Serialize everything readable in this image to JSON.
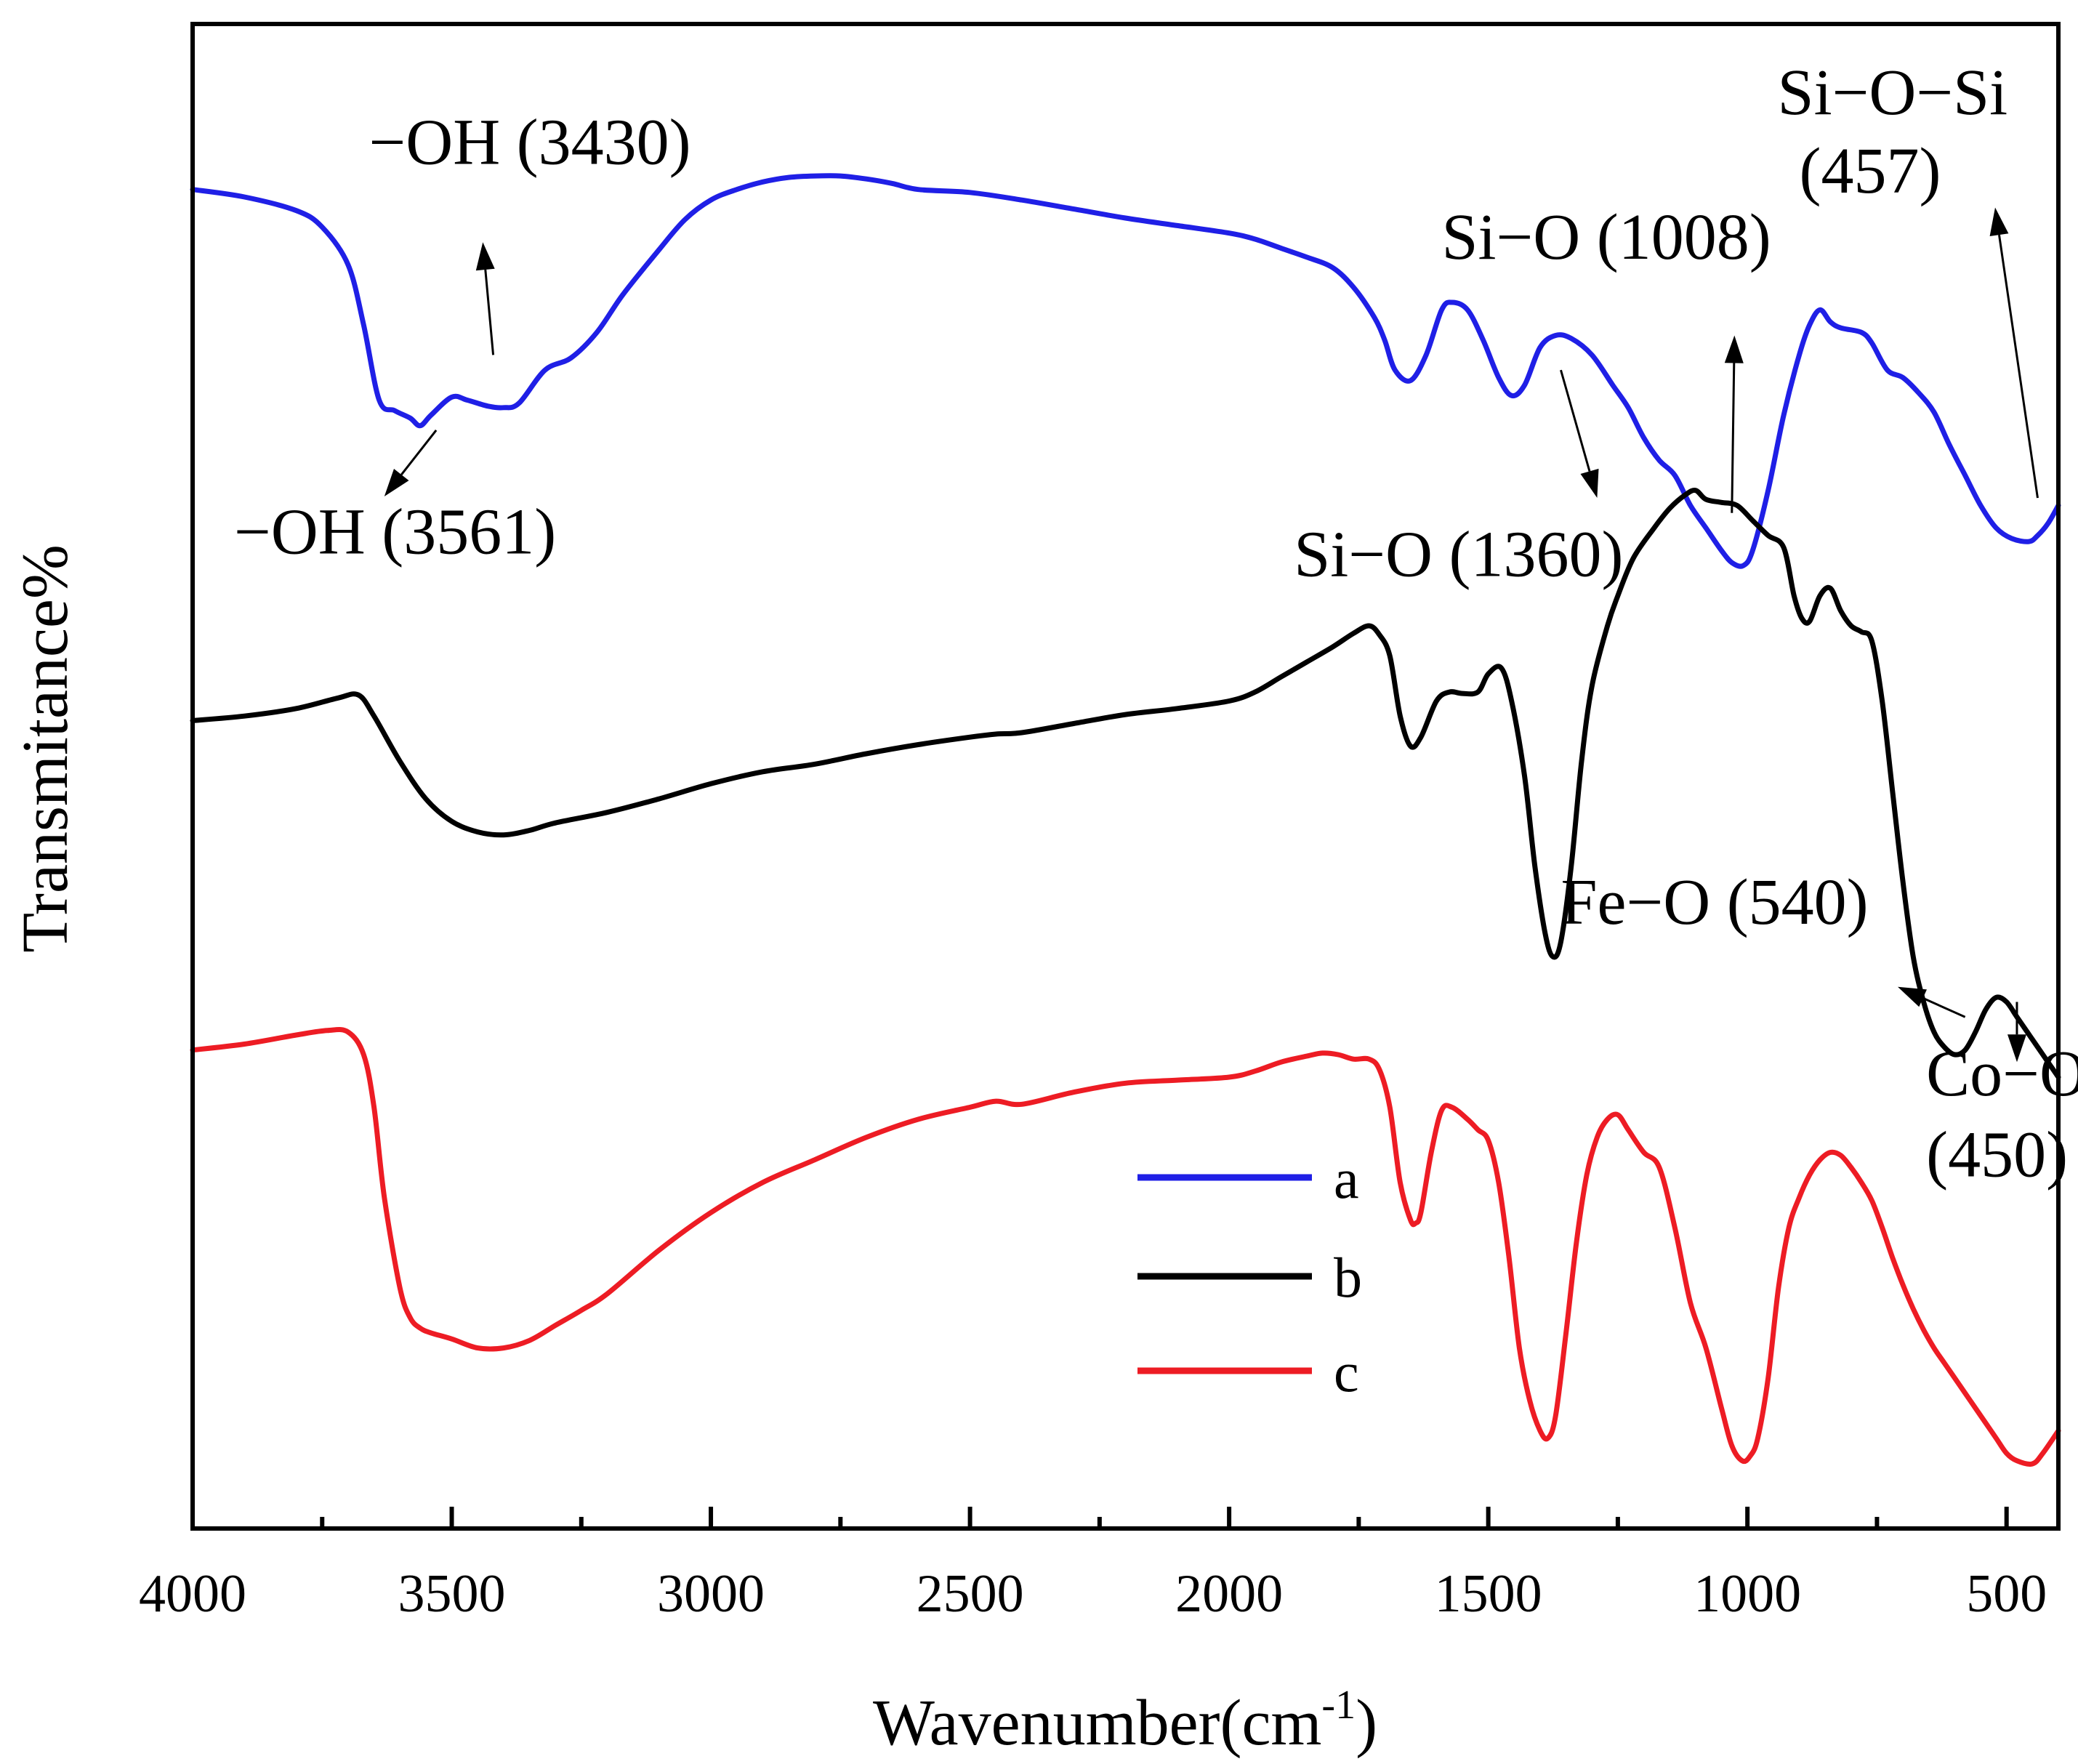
{
  "chart_data": {
    "type": "line",
    "title": "",
    "xlabel": "Wavenumber(cm",
    "xlabel_sup": "-1",
    "xlabel_close": ")",
    "ylabel": "Transmitance%",
    "xlim": [
      4000,
      400
    ],
    "ylim": [
      0,
      100
    ],
    "x_ticks": [
      "4000",
      "3500",
      "3000",
      "2500",
      "2000",
      "1500",
      "1000",
      "500"
    ],
    "x_tick_values": [
      4000,
      3500,
      3000,
      2500,
      2000,
      1500,
      1000,
      500
    ],
    "grid": false,
    "legend_position": "center-bottom",
    "series": [
      {
        "name": "a",
        "color": "#1f1fe6",
        "points": [
          [
            4000,
            89.0
          ],
          [
            3900,
            88.5
          ],
          [
            3800,
            87.6
          ],
          [
            3750,
            86.5
          ],
          [
            3700,
            84.0
          ],
          [
            3670,
            80.0
          ],
          [
            3640,
            75.0
          ],
          [
            3610,
            74.3
          ],
          [
            3580,
            73.8
          ],
          [
            3561,
            73.3
          ],
          [
            3540,
            74.0
          ],
          [
            3500,
            75.2
          ],
          [
            3470,
            75.0
          ],
          [
            3430,
            74.6
          ],
          [
            3400,
            74.5
          ],
          [
            3370,
            74.8
          ],
          [
            3320,
            77.0
          ],
          [
            3270,
            77.8
          ],
          [
            3220,
            79.5
          ],
          [
            3170,
            82.0
          ],
          [
            3100,
            85.0
          ],
          [
            3050,
            87.0
          ],
          [
            3000,
            88.3
          ],
          [
            2950,
            89.0
          ],
          [
            2900,
            89.5
          ],
          [
            2850,
            89.8
          ],
          [
            2800,
            89.9
          ],
          [
            2750,
            89.9
          ],
          [
            2700,
            89.7
          ],
          [
            2650,
            89.4
          ],
          [
            2600,
            89.0
          ],
          [
            2500,
            88.8
          ],
          [
            2400,
            88.3
          ],
          [
            2300,
            87.7
          ],
          [
            2200,
            87.1
          ],
          [
            2100,
            86.6
          ],
          [
            2000,
            86.1
          ],
          [
            1950,
            85.7
          ],
          [
            1900,
            85.1
          ],
          [
            1850,
            84.5
          ],
          [
            1800,
            83.8
          ],
          [
            1760,
            82.5
          ],
          [
            1720,
            80.5
          ],
          [
            1700,
            79.0
          ],
          [
            1680,
            77.0
          ],
          [
            1650,
            76.3
          ],
          [
            1620,
            78.0
          ],
          [
            1590,
            81.0
          ],
          [
            1570,
            81.5
          ],
          [
            1540,
            81.0
          ],
          [
            1510,
            79.0
          ],
          [
            1480,
            76.5
          ],
          [
            1455,
            75.3
          ],
          [
            1430,
            76.0
          ],
          [
            1400,
            78.5
          ],
          [
            1370,
            79.3
          ],
          [
            1340,
            79.1
          ],
          [
            1300,
            78.0
          ],
          [
            1260,
            76.0
          ],
          [
            1230,
            74.5
          ],
          [
            1200,
            72.5
          ],
          [
            1170,
            71.0
          ],
          [
            1140,
            70.0
          ],
          [
            1110,
            68.0
          ],
          [
            1080,
            66.5
          ],
          [
            1050,
            65.0
          ],
          [
            1030,
            64.2
          ],
          [
            1008,
            64.0
          ],
          [
            990,
            65.0
          ],
          [
            960,
            69.0
          ],
          [
            930,
            74.0
          ],
          [
            900,
            78.0
          ],
          [
            880,
            80.0
          ],
          [
            860,
            81.0
          ],
          [
            840,
            80.2
          ],
          [
            820,
            79.8
          ],
          [
            780,
            79.5
          ],
          [
            760,
            78.8
          ],
          [
            730,
            77.0
          ],
          [
            700,
            76.5
          ],
          [
            670,
            75.5
          ],
          [
            640,
            74.2
          ],
          [
            610,
            72.0
          ],
          [
            580,
            70.0
          ],
          [
            550,
            68.0
          ],
          [
            520,
            66.5
          ],
          [
            490,
            65.8
          ],
          [
            457,
            65.6
          ],
          [
            440,
            66.0
          ],
          [
            420,
            66.8
          ],
          [
            400,
            68.0
          ]
        ]
      },
      {
        "name": "b",
        "color": "#000000",
        "points": [
          [
            4000,
            53.7
          ],
          [
            3900,
            54.0
          ],
          [
            3800,
            54.5
          ],
          [
            3720,
            55.2
          ],
          [
            3680,
            55.4
          ],
          [
            3650,
            54.0
          ],
          [
            3600,
            51.0
          ],
          [
            3550,
            48.5
          ],
          [
            3500,
            47.0
          ],
          [
            3450,
            46.3
          ],
          [
            3400,
            46.1
          ],
          [
            3350,
            46.4
          ],
          [
            3300,
            46.9
          ],
          [
            3200,
            47.6
          ],
          [
            3100,
            48.5
          ],
          [
            3000,
            49.5
          ],
          [
            2900,
            50.3
          ],
          [
            2800,
            50.8
          ],
          [
            2700,
            51.5
          ],
          [
            2600,
            52.1
          ],
          [
            2500,
            52.6
          ],
          [
            2450,
            52.8
          ],
          [
            2400,
            52.9
          ],
          [
            2300,
            53.5
          ],
          [
            2200,
            54.1
          ],
          [
            2100,
            54.5
          ],
          [
            2000,
            55.0
          ],
          [
            1950,
            55.6
          ],
          [
            1900,
            56.6
          ],
          [
            1850,
            57.6
          ],
          [
            1800,
            58.6
          ],
          [
            1760,
            59.5
          ],
          [
            1730,
            60.0
          ],
          [
            1710,
            59.4
          ],
          [
            1690,
            58.0
          ],
          [
            1670,
            54.0
          ],
          [
            1650,
            52.0
          ],
          [
            1630,
            52.6
          ],
          [
            1600,
            55.0
          ],
          [
            1575,
            55.6
          ],
          [
            1550,
            55.5
          ],
          [
            1520,
            55.6
          ],
          [
            1500,
            56.8
          ],
          [
            1475,
            57.2
          ],
          [
            1455,
            55.0
          ],
          [
            1430,
            50.0
          ],
          [
            1410,
            44.0
          ],
          [
            1390,
            39.5
          ],
          [
            1375,
            38.0
          ],
          [
            1360,
            39.0
          ],
          [
            1340,
            44.0
          ],
          [
            1320,
            51.0
          ],
          [
            1300,
            56.0
          ],
          [
            1270,
            60.0
          ],
          [
            1250,
            62.0
          ],
          [
            1220,
            64.5
          ],
          [
            1180,
            66.5
          ],
          [
            1150,
            67.8
          ],
          [
            1120,
            68.7
          ],
          [
            1100,
            69.0
          ],
          [
            1080,
            68.4
          ],
          [
            1050,
            68.2
          ],
          [
            1020,
            68.0
          ],
          [
            990,
            67.0
          ],
          [
            960,
            66.0
          ],
          [
            930,
            65.2
          ],
          [
            910,
            62.0
          ],
          [
            895,
            60.5
          ],
          [
            880,
            60.3
          ],
          [
            860,
            62.0
          ],
          [
            840,
            62.5
          ],
          [
            820,
            61.0
          ],
          [
            800,
            60.0
          ],
          [
            780,
            59.6
          ],
          [
            760,
            59.0
          ],
          [
            740,
            55.0
          ],
          [
            720,
            49.0
          ],
          [
            700,
            43.0
          ],
          [
            680,
            38.0
          ],
          [
            660,
            35.0
          ],
          [
            640,
            33.0
          ],
          [
            620,
            32.0
          ],
          [
            600,
            31.5
          ],
          [
            580,
            31.8
          ],
          [
            560,
            33.0
          ],
          [
            540,
            34.5
          ],
          [
            520,
            35.3
          ],
          [
            500,
            35.0
          ],
          [
            480,
            34.0
          ],
          [
            460,
            33.0
          ],
          [
            440,
            32.0
          ],
          [
            420,
            31.0
          ],
          [
            400,
            30.0
          ]
        ]
      },
      {
        "name": "c",
        "color": "#ed1c24",
        "points": [
          [
            4000,
            31.8
          ],
          [
            3900,
            32.2
          ],
          [
            3800,
            32.8
          ],
          [
            3740,
            33.1
          ],
          [
            3700,
            33.0
          ],
          [
            3670,
            31.5
          ],
          [
            3650,
            28.0
          ],
          [
            3630,
            22.0
          ],
          [
            3600,
            16.0
          ],
          [
            3580,
            14.0
          ],
          [
            3560,
            13.3
          ],
          [
            3540,
            13.0
          ],
          [
            3500,
            12.6
          ],
          [
            3450,
            12.0
          ],
          [
            3400,
            12.0
          ],
          [
            3350,
            12.5
          ],
          [
            3300,
            13.5
          ],
          [
            3250,
            14.5
          ],
          [
            3200,
            15.6
          ],
          [
            3100,
            18.5
          ],
          [
            3000,
            21.0
          ],
          [
            2900,
            23.0
          ],
          [
            2800,
            24.5
          ],
          [
            2700,
            26.0
          ],
          [
            2600,
            27.2
          ],
          [
            2500,
            28.0
          ],
          [
            2450,
            28.4
          ],
          [
            2400,
            28.2
          ],
          [
            2300,
            29.0
          ],
          [
            2200,
            29.6
          ],
          [
            2100,
            29.8
          ],
          [
            2000,
            30.0
          ],
          [
            1950,
            30.4
          ],
          [
            1900,
            31.0
          ],
          [
            1850,
            31.4
          ],
          [
            1820,
            31.6
          ],
          [
            1790,
            31.5
          ],
          [
            1760,
            31.2
          ],
          [
            1730,
            31.2
          ],
          [
            1710,
            30.5
          ],
          [
            1690,
            28.0
          ],
          [
            1670,
            23.0
          ],
          [
            1650,
            20.5
          ],
          [
            1640,
            20.3
          ],
          [
            1630,
            21.0
          ],
          [
            1610,
            25.0
          ],
          [
            1590,
            27.8
          ],
          [
            1570,
            28.0
          ],
          [
            1540,
            27.2
          ],
          [
            1520,
            26.5
          ],
          [
            1500,
            25.8
          ],
          [
            1480,
            23.0
          ],
          [
            1460,
            18.0
          ],
          [
            1440,
            12.0
          ],
          [
            1420,
            8.5
          ],
          [
            1400,
            6.5
          ],
          [
            1385,
            6.0
          ],
          [
            1370,
            7.5
          ],
          [
            1350,
            13.0
          ],
          [
            1330,
            19.0
          ],
          [
            1310,
            23.5
          ],
          [
            1290,
            26.0
          ],
          [
            1270,
            27.2
          ],
          [
            1250,
            27.5
          ],
          [
            1230,
            26.5
          ],
          [
            1200,
            25.0
          ],
          [
            1170,
            24.0
          ],
          [
            1140,
            20.0
          ],
          [
            1110,
            15.0
          ],
          [
            1080,
            12.0
          ],
          [
            1050,
            8.0
          ],
          [
            1030,
            5.5
          ],
          [
            1010,
            4.5
          ],
          [
            995,
            4.8
          ],
          [
            980,
            6.0
          ],
          [
            960,
            10.0
          ],
          [
            940,
            16.0
          ],
          [
            920,
            20.0
          ],
          [
            900,
            22.0
          ],
          [
            880,
            23.5
          ],
          [
            860,
            24.5
          ],
          [
            840,
            25.0
          ],
          [
            820,
            24.8
          ],
          [
            800,
            24.0
          ],
          [
            780,
            23.0
          ],
          [
            760,
            21.8
          ],
          [
            740,
            20.0
          ],
          [
            720,
            18.0
          ],
          [
            700,
            16.2
          ],
          [
            680,
            14.6
          ],
          [
            660,
            13.2
          ],
          [
            640,
            12.0
          ],
          [
            620,
            11.0
          ],
          [
            600,
            10.0
          ],
          [
            580,
            9.0
          ],
          [
            560,
            8.0
          ],
          [
            540,
            7.0
          ],
          [
            520,
            6.0
          ],
          [
            500,
            5.0
          ],
          [
            480,
            4.5
          ],
          [
            450,
            4.3
          ],
          [
            430,
            5.0
          ],
          [
            400,
            6.5
          ]
        ]
      }
    ],
    "annotations": [
      {
        "text": "−OH (3430)",
        "x": 3660,
        "y": 90.7
      },
      {
        "text": "−OH (3561)",
        "x": 3920,
        "y": 64.8
      },
      {
        "text": "Si−O (1008)",
        "x": 1590,
        "y": 84.4
      },
      {
        "text": "Si−O−Si",
        "x": 942,
        "y": 94.0
      },
      {
        "text": "(457)",
        "x": 900,
        "y": 88.8
      },
      {
        "text": "Si−O (1360)",
        "x": 1875,
        "y": 63.3
      },
      {
        "text": "Fe−O (540)",
        "x": 1360,
        "y": 40.2
      },
      {
        "text": "Co−O",
        "x": 655,
        "y": 28.8
      },
      {
        "text": "(450)",
        "x": 655,
        "y": 23.4
      }
    ],
    "arrows": [
      {
        "from": [
          3420,
          78.0
        ],
        "to": [
          3440,
          85.5
        ]
      },
      {
        "from": [
          3530,
          73.0
        ],
        "to": [
          3630,
          68.6
        ]
      },
      {
        "from": [
          1030,
          67.5
        ],
        "to": [
          1025,
          79.3
        ]
      },
      {
        "from": [
          1360,
          77.0
        ],
        "to": [
          1290,
          68.5
        ]
      },
      {
        "from": [
          440,
          68.5
        ],
        "to": [
          522,
          87.8
        ]
      },
      {
        "from": [
          580,
          34.0
        ],
        "to": [
          710,
          36.0
        ]
      },
      {
        "from": [
          480,
          35.0
        ],
        "to": [
          480,
          31.0
        ]
      }
    ]
  }
}
